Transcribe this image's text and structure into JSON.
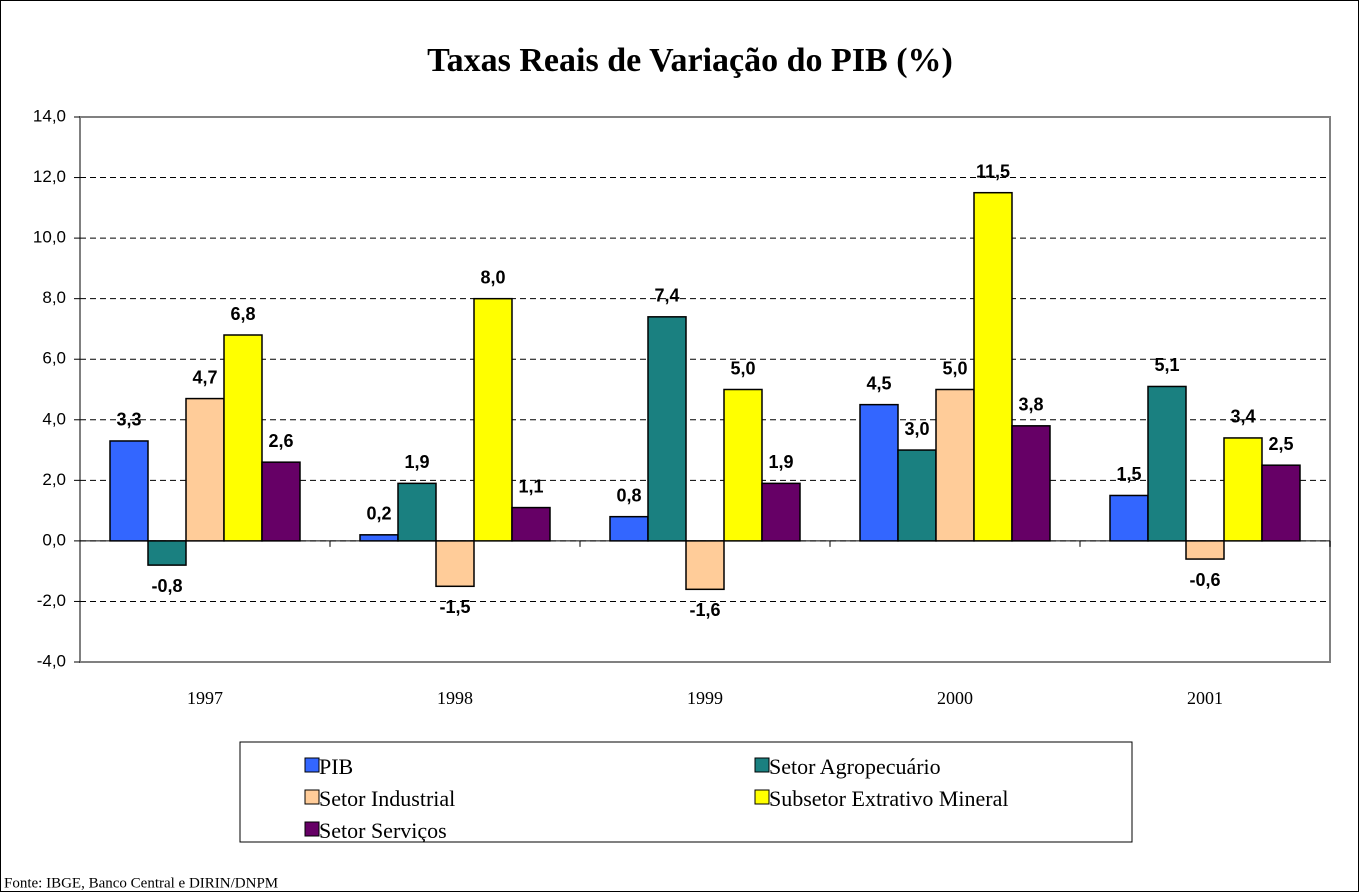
{
  "chart_data": {
    "type": "bar",
    "title": "Taxas Reais de Variação do PIB (%)",
    "source": "Fonte: IBGE, Banco Central e DIRIN/DNPM",
    "categories": [
      "1997",
      "1998",
      "1999",
      "2000",
      "2001"
    ],
    "series": [
      {
        "name": "PIB",
        "color": "#3366ff",
        "values": [
          3.3,
          0.2,
          0.8,
          4.5,
          1.5
        ],
        "value_labels": [
          "3,3",
          "0,2",
          "0,8",
          "4,5",
          "1,5"
        ]
      },
      {
        "name": "Setor Agropecuário",
        "color": "#1a8080",
        "values": [
          -0.8,
          1.9,
          7.4,
          3.0,
          5.1
        ],
        "value_labels": [
          "-0,8",
          "1,9",
          "7,4",
          "3,0",
          "5,1"
        ]
      },
      {
        "name": "Setor Industrial",
        "color": "#ffcc99",
        "values": [
          4.7,
          -1.5,
          -1.6,
          5.0,
          -0.6
        ],
        "value_labels": [
          "4,7",
          "-1,5",
          "-1,6",
          "5,0",
          "-0,6"
        ]
      },
      {
        "name": "Subsetor Extrativo Mineral",
        "color": "#ffff00",
        "values": [
          6.8,
          8.0,
          5.0,
          11.5,
          3.4
        ],
        "value_labels": [
          "6,8",
          "8,0",
          "5,0",
          "11,5",
          "3,4"
        ]
      },
      {
        "name": "Setor Serviços",
        "color": "#660066",
        "values": [
          2.6,
          1.1,
          1.9,
          3.8,
          2.5
        ],
        "value_labels": [
          "2,6",
          "1,1",
          "1,9",
          "3,8",
          "2,5"
        ]
      }
    ],
    "ylim": [
      -4,
      14
    ],
    "yticks": [
      {
        "value": -4,
        "label": "-4,0"
      },
      {
        "value": -2,
        "label": "-2,0"
      },
      {
        "value": 0,
        "label": "0,0"
      },
      {
        "value": 2,
        "label": "2,0"
      },
      {
        "value": 4,
        "label": "4,0"
      },
      {
        "value": 6,
        "label": "6,0"
      },
      {
        "value": 8,
        "label": "8,0"
      },
      {
        "value": 10,
        "label": "10,0"
      },
      {
        "value": 12,
        "label": "12,0"
      },
      {
        "value": 14,
        "label": "14,0"
      }
    ],
    "grid": true,
    "legend": "bottom"
  }
}
